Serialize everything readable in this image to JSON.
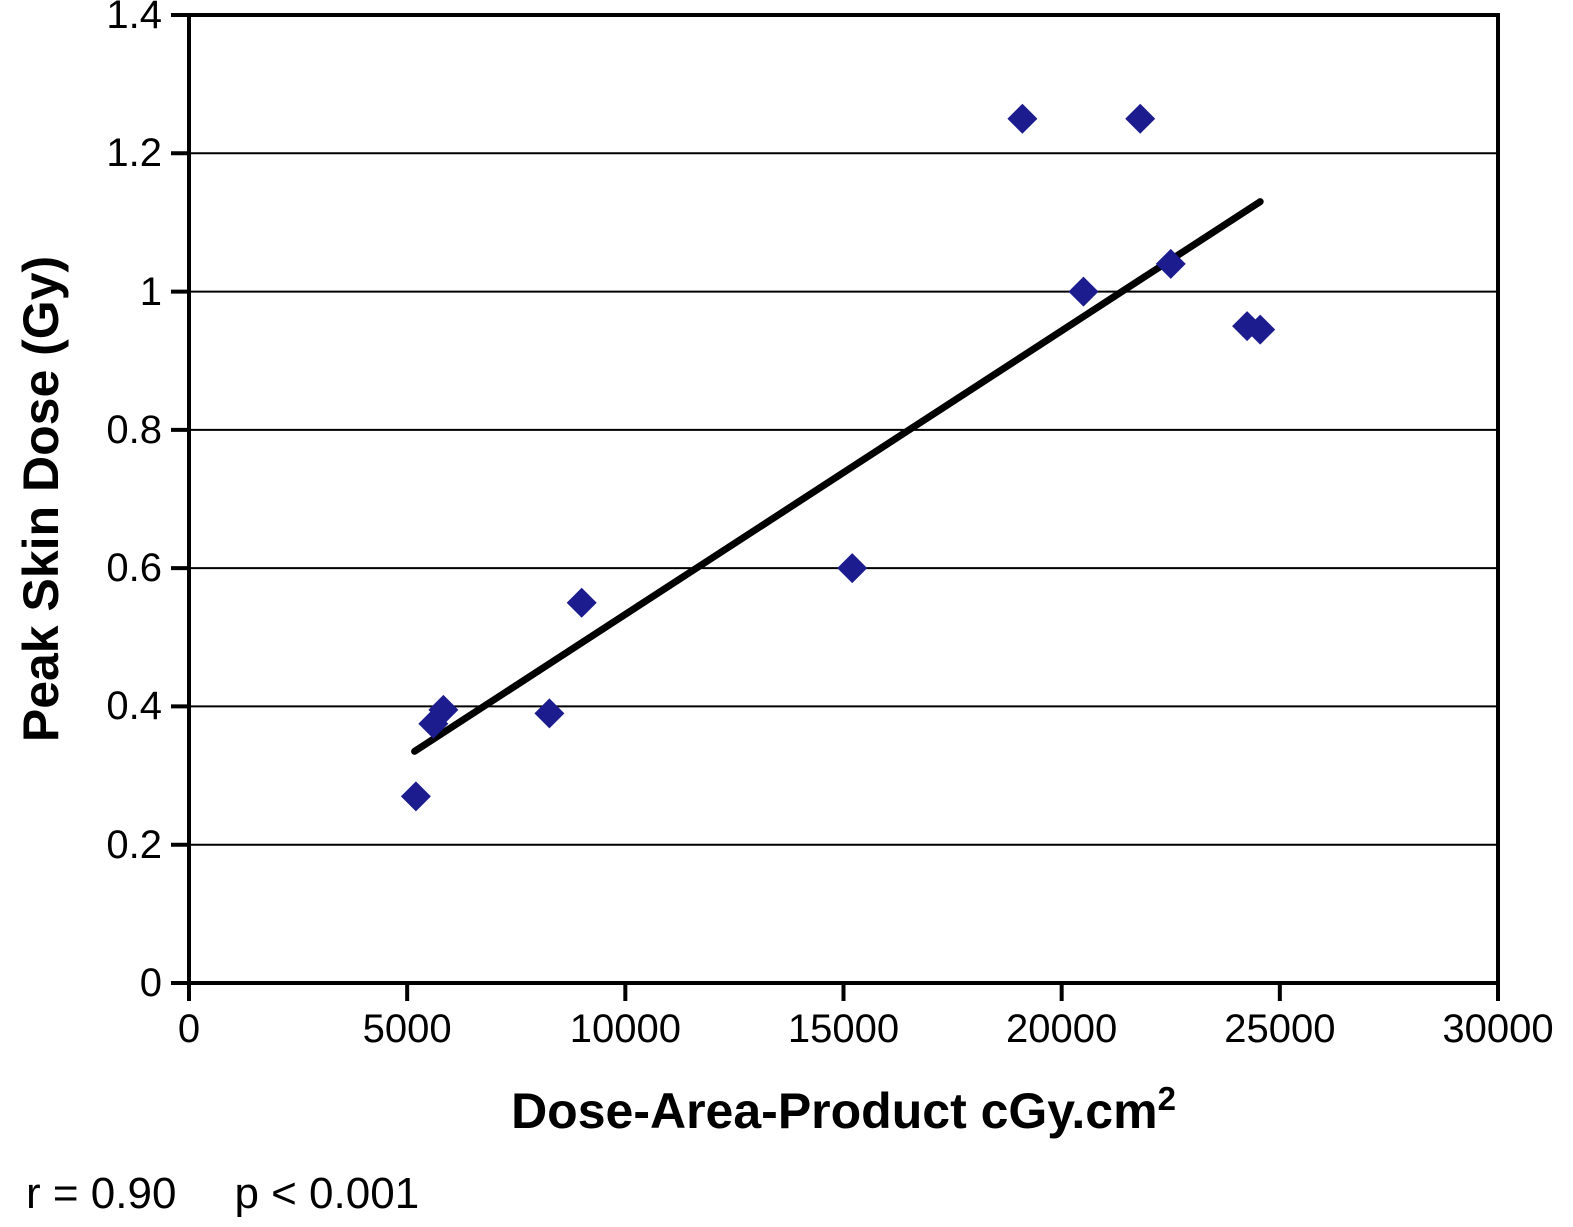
{
  "figure": {
    "background": "#ffffff",
    "text_color": "#000000"
  },
  "chart_data": {
    "type": "scatter",
    "title": "",
    "xlabel": "Dose-Area-Product cGy.cm",
    "xlabel_superscript": "2",
    "ylabel": "Peak Skin Dose (Gy)",
    "xlim": [
      0,
      30000
    ],
    "ylim": [
      0,
      1.4
    ],
    "x_ticks": [
      0,
      5000,
      10000,
      15000,
      20000,
      25000,
      30000
    ],
    "x_tick_labels": [
      "0",
      "5000",
      "10000",
      "15000",
      "20000",
      "25000",
      "30000"
    ],
    "y_ticks": [
      0,
      0.2,
      0.4,
      0.6,
      0.8,
      1.0,
      1.2,
      1.4
    ],
    "y_tick_labels": [
      "0",
      "0.2",
      "0.4",
      "0.6",
      "0.8",
      "1",
      "1.2",
      "1.4"
    ],
    "grid": "horizontal",
    "legend": "none",
    "points": [
      [
        5200,
        0.27
      ],
      [
        5600,
        0.375
      ],
      [
        5830,
        0.395
      ],
      [
        8260,
        0.39
      ],
      [
        9000,
        0.55
      ],
      [
        15200,
        0.6
      ],
      [
        19100,
        1.25
      ],
      [
        20500,
        1.0
      ],
      [
        21800,
        1.25
      ],
      [
        22500,
        1.04
      ],
      [
        24250,
        0.95
      ],
      [
        24550,
        0.945
      ]
    ],
    "marker": {
      "shape": "diamond",
      "color": "#1c1c8f",
      "size": 30
    },
    "trendline": {
      "x1": 5170,
      "y1": 0.335,
      "x2": 24550,
      "y2": 1.13,
      "color": "#000000",
      "width": 7
    },
    "axis_color": "#000000",
    "gridline_color": "#000000",
    "annotation": {
      "r": "r = 0.90",
      "p": "p < 0.001"
    }
  }
}
